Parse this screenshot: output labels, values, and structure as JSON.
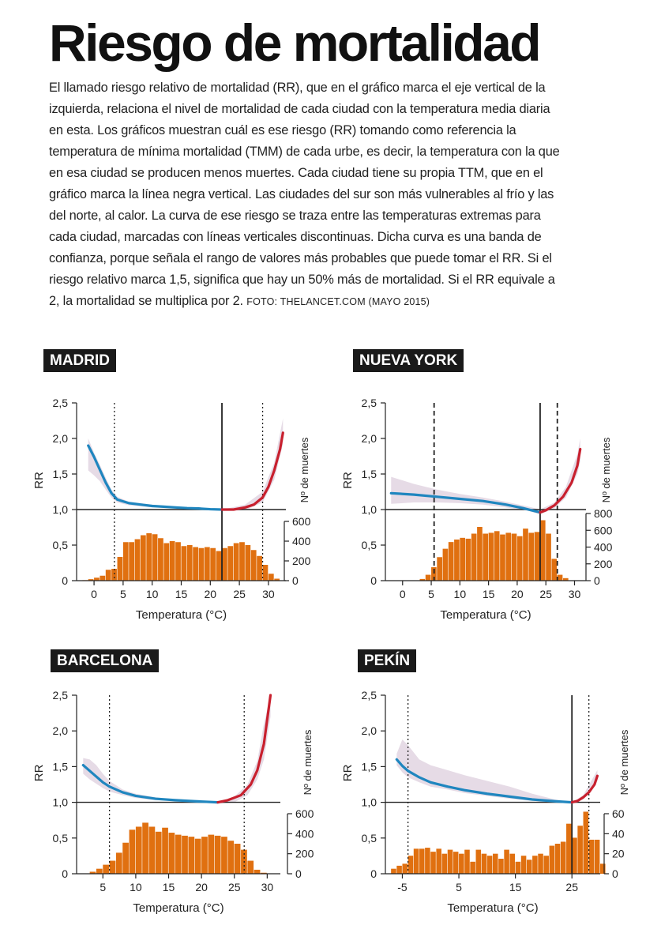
{
  "header": {
    "title": "Riesgo de mortalidad",
    "intro": "El llamado riesgo relativo de mortalidad (RR), que en el gráfico marca el eje vertical de la izquierda, relaciona el nivel de mortalidad de cada ciudad con la temperatura media diaria en esta. Los gráficos muestran cuál es ese riesgo (RR) tomando como referencia la temperatura de mínima mortalidad (TMM) de cada urbe, es decir, la temperatura con la que en esa ciudad se producen menos muertes. Cada ciudad tiene su propia TTM, que en el gráfico marca la línea negra vertical. Las ciudades del sur son más vulnerables al frío y las del norte, al calor. La curva de ese riesgo se traza entre las temperaturas extremas para cada ciudad, marcadas con líneas verticales discontinuas. Dicha curva es una banda de confianza, porque señala el rango de valores más probables que puede tomar el RR. Si el riesgo relativo marca 1,5, significa que hay un 50% más de mortalidad. Si el RR equivale a 2, la mortalidad se multiplica por 2.",
    "source": "FOTO: THELANCET.COM (MAYO 2015)"
  },
  "colors": {
    "cold_curve": "#1f86bf",
    "heat_curve": "#c8202e",
    "band": "#e6dbe6",
    "bars": "#e07010",
    "text": "#1a1a1a"
  },
  "chart_data": [
    {
      "type": "bar+line",
      "city": "MADRID",
      "xlabel": "Temperatura (°C)",
      "ylabel": "RR",
      "ylabel2": "Nº de muertes",
      "xlim": [
        -3,
        33
      ],
      "ylim": [
        0,
        2.5
      ],
      "xticks": [
        0,
        5,
        10,
        15,
        20,
        25,
        30
      ],
      "yticks": [
        0,
        0.5,
        1.0,
        1.5,
        2.0,
        2.5
      ],
      "ytick_labels": [
        "0",
        "0,5",
        "1,0",
        "1,5",
        "2,0",
        "2,5"
      ],
      "y2ticks": [
        0,
        200,
        400,
        600
      ],
      "y2max": 600,
      "mmt": 22,
      "extremes": [
        3.5,
        29
      ],
      "extreme_style": "dotted",
      "hist_x0": -2,
      "hist_width": 1,
      "histogram": [
        5,
        15,
        30,
        50,
        110,
        120,
        240,
        390,
        390,
        420,
        460,
        480,
        470,
        430,
        380,
        400,
        390,
        350,
        360,
        340,
        330,
        340,
        330,
        300,
        330,
        350,
        380,
        390,
        360,
        310,
        250,
        160,
        70,
        20
      ],
      "curve": [
        [
          -1,
          1.9
        ],
        [
          0,
          1.74
        ],
        [
          1,
          1.56
        ],
        [
          2,
          1.38
        ],
        [
          3,
          1.23
        ],
        [
          4,
          1.14
        ],
        [
          6,
          1.09
        ],
        [
          8,
          1.07
        ],
        [
          10,
          1.05
        ],
        [
          12,
          1.04
        ],
        [
          14,
          1.03
        ],
        [
          16,
          1.02
        ],
        [
          18,
          1.015
        ],
        [
          20,
          1.005
        ],
        [
          22,
          1.0
        ]
      ],
      "heat_curve": [
        [
          22,
          1.0
        ],
        [
          24,
          1.0
        ],
        [
          26,
          1.03
        ],
        [
          27.5,
          1.07
        ],
        [
          29,
          1.17
        ],
        [
          30,
          1.32
        ],
        [
          31,
          1.55
        ],
        [
          32,
          1.85
        ],
        [
          32.5,
          2.08
        ]
      ],
      "band_upper": [
        [
          -1,
          2.0
        ],
        [
          0,
          1.8
        ],
        [
          1,
          1.63
        ],
        [
          2,
          1.45
        ],
        [
          3,
          1.28
        ],
        [
          4,
          1.18
        ],
        [
          6,
          1.11
        ],
        [
          10,
          1.07
        ],
        [
          14,
          1.04
        ],
        [
          18,
          1.02
        ],
        [
          22,
          1.0
        ],
        [
          26,
          1.07
        ],
        [
          29,
          1.25
        ],
        [
          31,
          1.66
        ],
        [
          32.5,
          2.28
        ]
      ],
      "band_lower": [
        [
          -1,
          1.55
        ],
        [
          0,
          1.48
        ],
        [
          1,
          1.4
        ],
        [
          2,
          1.28
        ],
        [
          3,
          1.17
        ],
        [
          4,
          1.1
        ],
        [
          6,
          1.06
        ],
        [
          10,
          1.03
        ],
        [
          14,
          1.02
        ],
        [
          18,
          1.005
        ],
        [
          22,
          0.98
        ],
        [
          26,
          0.99
        ],
        [
          29,
          1.1
        ],
        [
          31,
          1.42
        ],
        [
          32.5,
          1.92
        ]
      ]
    },
    {
      "type": "bar+line",
      "city": "NUEVA YORK",
      "xlabel": "Temperatura (°C)",
      "ylabel": "RR",
      "ylabel2": "Nº de muertes",
      "xlim": [
        -3,
        32
      ],
      "ylim": [
        0,
        2.5
      ],
      "xticks": [
        0,
        5,
        10,
        15,
        20,
        25,
        30
      ],
      "yticks": [
        0,
        0.5,
        1.0,
        1.5,
        2.0,
        2.5
      ],
      "ytick_labels": [
        "0",
        "0,5",
        "1,0",
        "1,5",
        "2,0",
        "2,5"
      ],
      "y2ticks": [
        0,
        200,
        400,
        600,
        800
      ],
      "y2max": 800,
      "mmt": 24,
      "extremes": [
        5.5,
        27
      ],
      "extreme_style": "dashed",
      "hist_x0": 3,
      "hist_width": 1,
      "histogram": [
        20,
        70,
        160,
        280,
        380,
        460,
        490,
        510,
        500,
        560,
        640,
        560,
        570,
        590,
        550,
        570,
        560,
        530,
        620,
        570,
        580,
        720,
        560,
        260,
        70,
        30
      ],
      "curve": [
        [
          -2,
          1.23
        ],
        [
          2,
          1.21
        ],
        [
          6,
          1.18
        ],
        [
          10,
          1.15
        ],
        [
          14,
          1.12
        ],
        [
          18,
          1.07
        ],
        [
          21,
          1.02
        ],
        [
          23,
          0.98
        ],
        [
          24,
          0.96
        ]
      ],
      "heat_curve": [
        [
          24,
          0.96
        ],
        [
          25,
          0.99
        ],
        [
          26.5,
          1.06
        ],
        [
          28,
          1.18
        ],
        [
          29.5,
          1.38
        ],
        [
          30.5,
          1.62
        ],
        [
          31,
          1.85
        ]
      ],
      "band_upper": [
        [
          -2,
          1.46
        ],
        [
          2,
          1.36
        ],
        [
          6,
          1.28
        ],
        [
          10,
          1.22
        ],
        [
          14,
          1.17
        ],
        [
          18,
          1.11
        ],
        [
          22,
          1.04
        ],
        [
          24,
          1.0
        ],
        [
          26.5,
          1.1
        ],
        [
          28.5,
          1.32
        ],
        [
          30.5,
          1.78
        ],
        [
          31,
          2.0
        ]
      ],
      "band_lower": [
        [
          -2,
          1.08
        ],
        [
          2,
          1.1
        ],
        [
          6,
          1.1
        ],
        [
          10,
          1.09
        ],
        [
          14,
          1.07
        ],
        [
          18,
          1.03
        ],
        [
          22,
          0.98
        ],
        [
          24,
          0.93
        ],
        [
          26.5,
          1.02
        ],
        [
          28.5,
          1.17
        ],
        [
          30.5,
          1.5
        ],
        [
          31,
          1.68
        ]
      ]
    },
    {
      "type": "bar+line",
      "city": "BARCELONA",
      "xlabel": "Temperatura (°C)",
      "ylabel": "RR",
      "ylabel2": "Nº de muertes",
      "xlim": [
        1,
        32
      ],
      "ylim": [
        0,
        2.5
      ],
      "xticks": [
        5,
        10,
        15,
        20,
        25,
        30
      ],
      "yticks": [
        0,
        0.5,
        1.0,
        1.5,
        2.0,
        2.5
      ],
      "ytick_labels": [
        "0",
        "0,5",
        "1,0",
        "1,5",
        "2,0",
        "2,5"
      ],
      "y2ticks": [
        0,
        200,
        400,
        600
      ],
      "y2max": 600,
      "mmt": null,
      "extremes": [
        6,
        26.5
      ],
      "extreme_style": "dotted",
      "hist_x0": 3,
      "hist_width": 1,
      "histogram": [
        20,
        50,
        90,
        130,
        210,
        310,
        440,
        470,
        510,
        470,
        420,
        460,
        410,
        390,
        380,
        370,
        350,
        370,
        390,
        380,
        370,
        330,
        300,
        240,
        130,
        40,
        10
      ],
      "curve": [
        [
          2,
          1.52
        ],
        [
          3,
          1.44
        ],
        [
          4,
          1.36
        ],
        [
          5,
          1.28
        ],
        [
          6,
          1.22
        ],
        [
          8,
          1.14
        ],
        [
          10,
          1.09
        ],
        [
          13,
          1.05
        ],
        [
          16,
          1.03
        ],
        [
          19,
          1.015
        ],
        [
          22.5,
          1.0
        ]
      ],
      "heat_curve": [
        [
          22.5,
          1.0
        ],
        [
          24,
          1.03
        ],
        [
          26,
          1.1
        ],
        [
          27.5,
          1.25
        ],
        [
          28.5,
          1.45
        ],
        [
          29.5,
          1.82
        ],
        [
          30.5,
          2.5
        ]
      ],
      "band_upper": [
        [
          2,
          1.62
        ],
        [
          3,
          1.6
        ],
        [
          4,
          1.52
        ],
        [
          5,
          1.4
        ],
        [
          6,
          1.3
        ],
        [
          8,
          1.18
        ],
        [
          10,
          1.12
        ],
        [
          13,
          1.07
        ],
        [
          16,
          1.04
        ],
        [
          19,
          1.02
        ],
        [
          22.5,
          1.0
        ],
        [
          25,
          1.08
        ],
        [
          27,
          1.25
        ],
        [
          28.5,
          1.58
        ],
        [
          29.5,
          2.1
        ],
        [
          30.5,
          2.5
        ]
      ],
      "band_lower": [
        [
          2,
          1.4
        ],
        [
          3,
          1.32
        ],
        [
          4,
          1.26
        ],
        [
          5,
          1.2
        ],
        [
          6,
          1.15
        ],
        [
          8,
          1.1
        ],
        [
          10,
          1.06
        ],
        [
          13,
          1.03
        ],
        [
          16,
          1.02
        ],
        [
          19,
          1.005
        ],
        [
          22.5,
          0.98
        ],
        [
          25,
          1.0
        ],
        [
          27,
          1.1
        ],
        [
          28.5,
          1.32
        ],
        [
          29.5,
          1.6
        ],
        [
          30.5,
          2.2
        ]
      ]
    },
    {
      "type": "bar+line",
      "city": "PEKÍN",
      "xlabel": "Temperatura (°C)",
      "ylabel": "RR",
      "ylabel2": "Nº de muertes",
      "xlim": [
        -8,
        30
      ],
      "ylim": [
        0,
        2.5
      ],
      "xticks": [
        -5,
        5,
        15,
        25
      ],
      "yticks": [
        0,
        0.5,
        1.0,
        1.5,
        2.0,
        2.5
      ],
      "ytick_labels": [
        "0",
        "0,5",
        "1,0",
        "1,5",
        "2,0",
        "2,5"
      ],
      "y2ticks": [
        0,
        20,
        40,
        60
      ],
      "y2max": 60,
      "mmt": 25,
      "extremes": [
        -4,
        28
      ],
      "extreme_style": "dotted",
      "hist_x0": -7,
      "hist_width": 1,
      "histogram": [
        5,
        8,
        10,
        18,
        25,
        25,
        26,
        22,
        25,
        20,
        24,
        22,
        20,
        24,
        12,
        24,
        20,
        18,
        20,
        15,
        24,
        20,
        12,
        18,
        14,
        18,
        20,
        18,
        28,
        30,
        32,
        50,
        36,
        48,
        62,
        34,
        34,
        10
      ],
      "curve": [
        [
          -6,
          1.6
        ],
        [
          -5,
          1.51
        ],
        [
          -4,
          1.44
        ],
        [
          -2,
          1.35
        ],
        [
          0,
          1.28
        ],
        [
          3,
          1.22
        ],
        [
          6,
          1.17
        ],
        [
          10,
          1.12
        ],
        [
          14,
          1.08
        ],
        [
          18,
          1.04
        ],
        [
          22,
          1.015
        ],
        [
          25,
          1.0
        ]
      ],
      "heat_curve": [
        [
          25,
          1.0
        ],
        [
          26,
          1.02
        ],
        [
          27,
          1.07
        ],
        [
          28,
          1.14
        ],
        [
          29,
          1.25
        ],
        [
          29.5,
          1.37
        ]
      ],
      "band_upper": [
        [
          -6,
          1.68
        ],
        [
          -5,
          1.88
        ],
        [
          -4,
          1.8
        ],
        [
          -2,
          1.6
        ],
        [
          0,
          1.52
        ],
        [
          3,
          1.45
        ],
        [
          6,
          1.38
        ],
        [
          10,
          1.3
        ],
        [
          14,
          1.22
        ],
        [
          18,
          1.12
        ],
        [
          22,
          1.04
        ],
        [
          25,
          1.0
        ],
        [
          27,
          1.1
        ],
        [
          29.5,
          1.45
        ]
      ],
      "band_lower": [
        [
          -6,
          1.52
        ],
        [
          -5,
          1.42
        ],
        [
          -4,
          1.35
        ],
        [
          -2,
          1.28
        ],
        [
          0,
          1.22
        ],
        [
          3,
          1.18
        ],
        [
          6,
          1.13
        ],
        [
          10,
          1.09
        ],
        [
          14,
          1.05
        ],
        [
          18,
          1.02
        ],
        [
          22,
          1.0
        ],
        [
          25,
          0.99
        ],
        [
          27,
          1.04
        ],
        [
          29.5,
          1.3
        ]
      ]
    }
  ]
}
